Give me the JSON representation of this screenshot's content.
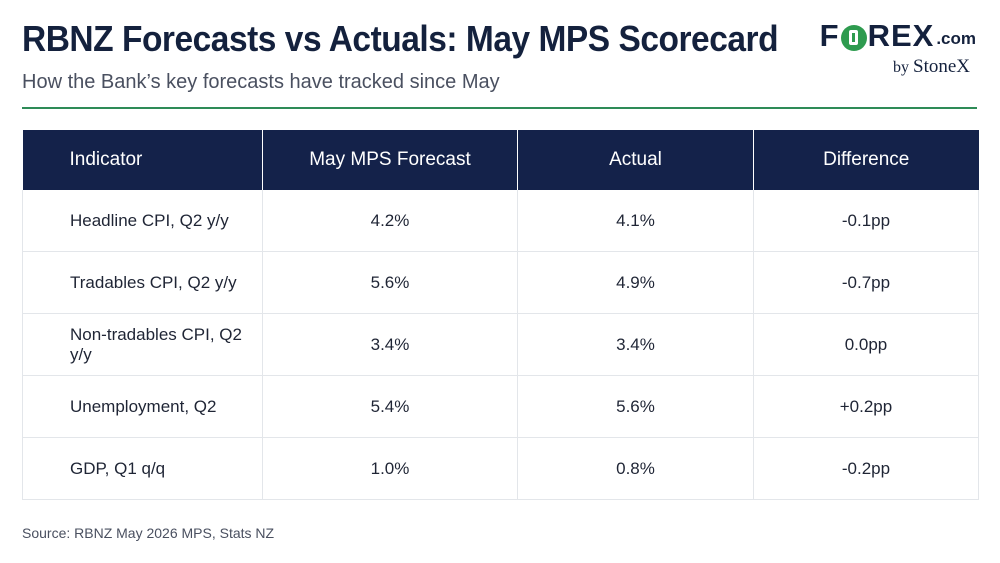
{
  "header": {
    "title": "RBNZ Forecasts vs Actuals: May MPS Scorecard",
    "subtitle": "How the Bank’s key forecasts have tracked since May"
  },
  "logo": {
    "word_left": "F",
    "word_right": "REX",
    "suffix": ".com",
    "by": "by",
    "brand": "StoneX",
    "accent_color": "#2e9b4f"
  },
  "table": {
    "columns": [
      "Indicator",
      "May MPS Forecast",
      "Actual",
      "Difference"
    ],
    "rows": [
      {
        "indicator": "Headline CPI, Q2 y/y",
        "forecast": "4.2%",
        "actual": "4.1%",
        "difference": "-0.1pp",
        "direction": "neg"
      },
      {
        "indicator": "Tradables CPI, Q2 y/y",
        "forecast": "5.6%",
        "actual": "4.9%",
        "difference": "-0.7pp",
        "direction": "neg"
      },
      {
        "indicator": "Non-tradables CPI, Q2 y/y",
        "forecast": "3.4%",
        "actual": "3.4%",
        "difference": "0.0pp",
        "direction": "neu"
      },
      {
        "indicator": "Unemployment, Q2",
        "forecast": "5.4%",
        "actual": "5.6%",
        "difference": "+0.2pp",
        "direction": "pos"
      },
      {
        "indicator": "GDP, Q1 q/q",
        "forecast": "1.0%",
        "actual": "0.8%",
        "difference": "-0.2pp",
        "direction": "neg"
      }
    ],
    "colors": {
      "header_bg": "#14224a",
      "negative": "#2e8b3f",
      "positive": "#b23a48"
    }
  },
  "footer": {
    "source": "Source: RBNZ May 2026 MPS, Stats NZ"
  }
}
